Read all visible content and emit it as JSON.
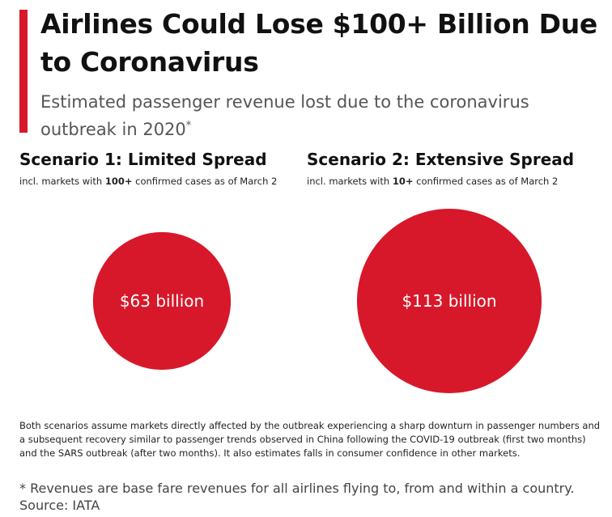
{
  "title": "Airlines Could Lose $100+ Billion Due to Coronavirus",
  "subtitle": "Estimated passenger revenue lost due to the coronavirus outbreak in 2020",
  "subtitle_marker": "*",
  "accent_color": "#d7182a",
  "scenarios": [
    {
      "heading": "Scenario 1: Limited Spread",
      "sub_pre": "incl. markets with ",
      "sub_bold": "100+",
      "sub_post": " confirmed cases as of March 2"
    },
    {
      "heading": "Scenario 2: Extensive Spread",
      "sub_pre": "incl. markets with ",
      "sub_bold": "10+",
      "sub_post": " confirmed cases as of March 2"
    }
  ],
  "chart_data": {
    "type": "bubble",
    "series": [
      {
        "value": 63,
        "label": "$63 billion",
        "color": "#d7182a"
      },
      {
        "value": 113,
        "label": "$113 billion",
        "color": "#d7182a"
      }
    ]
  },
  "footnote": "Both scenarios assume markets directly affected by the outbreak experiencing a sharp downturn in passenger numbers and a subsequent recovery similar to passenger trends observed in China following the COVID-19 outbreak (first two months) and the SARS outbreak (after two months). It also estimates falls in consumer confidence in other markets.",
  "footer": {
    "note": "* Revenues are base fare revenues for all airlines flying to, from and within a country.",
    "source": "Source: IATA"
  }
}
